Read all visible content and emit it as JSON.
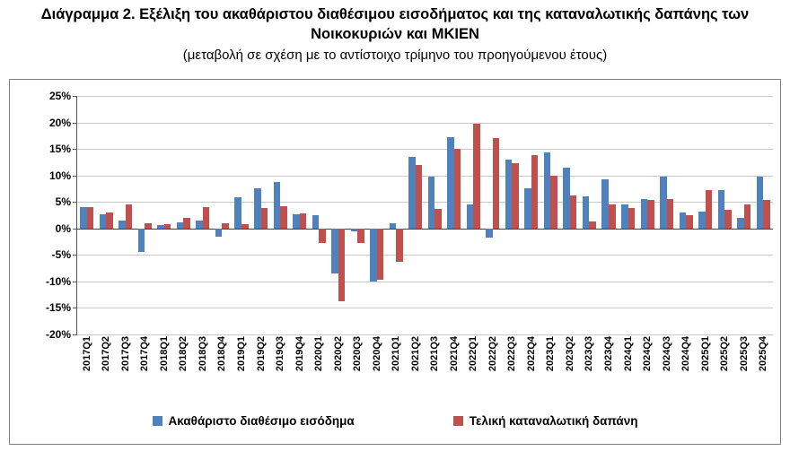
{
  "title_line1": "Διάγραμμα 2. Εξέλιξη του ακαθάριστου διαθέσιμου εισοδήματος και της καταναλωτικής δαπάνης των",
  "title_line2": "Νοικοκυριών και ΜΚΙΕΝ",
  "subtitle": "(μεταβολή σε σχέση με το αντίστοιχο τρίμηνο του προηγούμενου έτους)",
  "chart_data": {
    "type": "bar",
    "categories": [
      "2017Q1",
      "2017Q2",
      "2017Q3",
      "2017Q4",
      "2018Q1",
      "2018Q2",
      "2018Q3",
      "2018Q4",
      "2019Q1",
      "2019Q2",
      "2019Q3",
      "2019Q4",
      "2020Q1",
      "2020Q2",
      "2020Q3",
      "2020Q4",
      "2021Q1",
      "2021Q2",
      "2021Q3",
      "2021Q4",
      "2022Q1",
      "2022Q2",
      "2022Q3",
      "2022Q4",
      "2023Q1",
      "2023Q2",
      "2023Q3",
      "2023Q4",
      "2024Q1",
      "2024Q2",
      "2024Q3",
      "2024Q4",
      "2025Q1",
      "2025Q2",
      "2025Q3",
      "2025Q4"
    ],
    "series": [
      {
        "name": "Ακαθάριστο διαθέσιμο εισόδημα",
        "color": "#4F81BD",
        "values": [
          4.0,
          2.6,
          1.5,
          -4.5,
          0.6,
          1.2,
          1.5,
          -1.5,
          5.8,
          7.5,
          8.7,
          2.7,
          2.5,
          -8.5,
          -0.5,
          -10.0,
          1.0,
          13.5,
          9.7,
          17.3,
          4.5,
          -1.8,
          13.0,
          7.5,
          14.3,
          11.5,
          6.0,
          9.3,
          4.5,
          5.5,
          9.7,
          3.0,
          3.2,
          7.3,
          2.0,
          9.7
        ]
      },
      {
        "name": "Τελική καταναλωτική δαπάνη",
        "color": "#C0504D",
        "values": [
          4.0,
          3.0,
          4.5,
          1.0,
          0.8,
          2.0,
          4.0,
          1.0,
          0.8,
          3.8,
          4.2,
          2.8,
          -2.8,
          -13.7,
          -2.8,
          -9.7,
          -6.3,
          12.0,
          3.7,
          15.0,
          19.7,
          17.0,
          12.3,
          13.8,
          10.0,
          6.3,
          1.3,
          4.5,
          3.8,
          5.3,
          5.5,
          2.5,
          7.3,
          3.5,
          4.5,
          5.3
        ]
      }
    ],
    "title": "",
    "xlabel": "",
    "ylabel": "",
    "ylim": [
      -20,
      25
    ],
    "ytick_step": 5,
    "ytick_labels": [
      "25%",
      "20%",
      "15%",
      "10%",
      "5%",
      "0%",
      "-5%",
      "-10%",
      "-15%",
      "-20%"
    ],
    "grid": true,
    "legend_position": "bottom"
  }
}
